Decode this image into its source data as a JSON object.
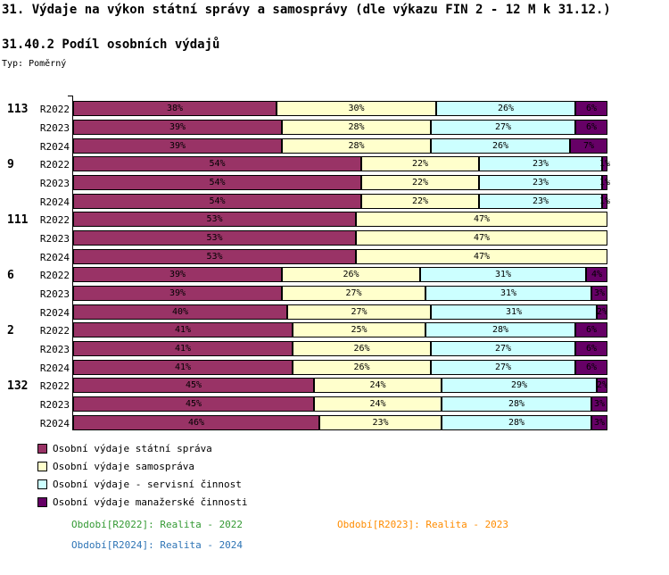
{
  "header": {
    "title": "31. Výdaje na výkon státní správy a samosprávy (dle výkazu FIN 2 - 12 M k 31.12.)",
    "subtitle": "31.40.2 Podíl osobních výdajů",
    "type_label": "Typ: Poměrný"
  },
  "chart_data": {
    "type": "bar",
    "orientation": "horizontal-stacked",
    "unit": "%",
    "value_range": [
      0,
      100
    ],
    "grid": false,
    "legend_position": "bottom-left",
    "series": [
      {
        "name": "Osobní výdaje státní správa",
        "color": "#993366"
      },
      {
        "name": "Osobní výdaje samospráva",
        "color": "#FFFFCC"
      },
      {
        "name": "Osobní výdaje - servisní činnost",
        "color": "#CCFFFF"
      },
      {
        "name": "Osobní výdaje manažerské činnosti",
        "color": "#660066"
      }
    ],
    "groups": [
      {
        "label": "113",
        "rows": [
          {
            "period": "R2022",
            "values": [
              38,
              30,
              26,
              6
            ]
          },
          {
            "period": "R2023",
            "values": [
              39,
              28,
              27,
              6
            ]
          },
          {
            "period": "R2024",
            "values": [
              39,
              28,
              26,
              7
            ]
          }
        ]
      },
      {
        "label": "9",
        "rows": [
          {
            "period": "R2022",
            "values": [
              54,
              22,
              23,
              1
            ]
          },
          {
            "period": "R2023",
            "values": [
              54,
              22,
              23,
              1
            ]
          },
          {
            "period": "R2024",
            "values": [
              54,
              22,
              23,
              1
            ]
          }
        ]
      },
      {
        "label": "111",
        "rows": [
          {
            "period": "R2022",
            "values": [
              53,
              47,
              0,
              0
            ]
          },
          {
            "period": "R2023",
            "values": [
              53,
              47,
              0,
              0
            ]
          },
          {
            "period": "R2024",
            "values": [
              53,
              47,
              0,
              0
            ]
          }
        ]
      },
      {
        "label": "6",
        "rows": [
          {
            "period": "R2022",
            "values": [
              39,
              26,
              31,
              4
            ]
          },
          {
            "period": "R2023",
            "values": [
              39,
              27,
              31,
              3
            ]
          },
          {
            "period": "R2024",
            "values": [
              40,
              27,
              31,
              2
            ]
          }
        ]
      },
      {
        "label": "2",
        "rows": [
          {
            "period": "R2022",
            "values": [
              41,
              25,
              28,
              6
            ]
          },
          {
            "period": "R2023",
            "values": [
              41,
              26,
              27,
              6
            ]
          },
          {
            "period": "R2024",
            "values": [
              41,
              26,
              27,
              6
            ]
          }
        ]
      },
      {
        "label": "132",
        "rows": [
          {
            "period": "R2022",
            "values": [
              45,
              24,
              29,
              2
            ]
          },
          {
            "period": "R2023",
            "values": [
              45,
              24,
              28,
              3
            ]
          },
          {
            "period": "R2024",
            "values": [
              46,
              23,
              28,
              3
            ]
          }
        ]
      }
    ]
  },
  "footer": {
    "annotations": [
      {
        "text": "Období[R2022]: Realita - 2022",
        "color": "#339933"
      },
      {
        "text": "Období[R2023]: Realita - 2023",
        "color": "#FF8C00"
      },
      {
        "text": "Období[R2024]: Realita - 2024",
        "color": "#2E74B5"
      }
    ]
  }
}
